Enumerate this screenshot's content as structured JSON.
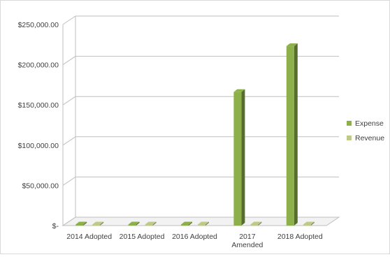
{
  "chart_data": {
    "type": "bar",
    "style": "3d-clustered-column",
    "categories": [
      "2014 Adopted",
      "2015 Adopted",
      "2016 Adopted",
      "2017 Amended",
      "2018 Adopted"
    ],
    "category_tick_labels": [
      [
        "2014 Adopted"
      ],
      [
        "2015 Adopted"
      ],
      [
        "2016 Adopted"
      ],
      [
        "2017",
        "Amended"
      ],
      [
        "2018 Adopted"
      ]
    ],
    "series": [
      {
        "name": "Expense",
        "color": "#8db04a",
        "values": [
          0,
          0,
          0,
          166000,
          223000
        ]
      },
      {
        "name": "Revenue",
        "color": "#bfc98a",
        "values": [
          0,
          0,
          0,
          0,
          0
        ]
      }
    ],
    "ylim": [
      0,
      250000
    ],
    "y_ticks": [
      0,
      50000,
      100000,
      150000,
      200000,
      250000
    ],
    "y_tick_labels": [
      "$-",
      "$50,000.00",
      "$100,000.00",
      "$150,000.00",
      "$200,000.00",
      "$250,000.00"
    ],
    "grid": true,
    "legend_position": "right",
    "title": "",
    "xlabel": "",
    "ylabel": ""
  }
}
